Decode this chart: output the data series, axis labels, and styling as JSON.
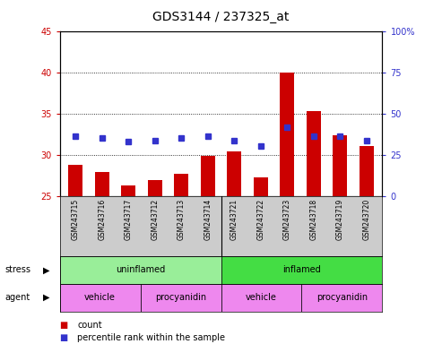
{
  "title": "GDS3144 / 237325_at",
  "samples": [
    "GSM243715",
    "GSM243716",
    "GSM243717",
    "GSM243712",
    "GSM243713",
    "GSM243714",
    "GSM243721",
    "GSM243722",
    "GSM243723",
    "GSM243718",
    "GSM243719",
    "GSM243720"
  ],
  "count_values": [
    28.8,
    27.9,
    26.3,
    26.9,
    27.7,
    29.9,
    30.4,
    27.3,
    40.0,
    35.3,
    32.4,
    31.1
  ],
  "percentile_values": [
    32.3,
    32.0,
    31.6,
    31.7,
    32.0,
    32.3,
    31.7,
    31.1,
    33.3,
    32.3,
    32.3,
    31.7
  ],
  "ylim_left": [
    25,
    45
  ],
  "ylim_right": [
    0,
    100
  ],
  "yticks_left": [
    25,
    30,
    35,
    40,
    45
  ],
  "yticks_right": [
    0,
    25,
    50,
    75,
    100
  ],
  "bar_color": "#cc0000",
  "dot_color": "#3333cc",
  "bar_width": 0.55,
  "stress_groups": [
    {
      "label": "uninflamed",
      "start": 0,
      "end": 6,
      "color": "#99ee99"
    },
    {
      "label": "inflamed",
      "start": 6,
      "end": 12,
      "color": "#44dd44"
    }
  ],
  "agent_groups": [
    {
      "label": "vehicle",
      "start": 0,
      "end": 3,
      "color": "#ee88ee"
    },
    {
      "label": "procyanidin",
      "start": 3,
      "end": 6,
      "color": "#ee88ee"
    },
    {
      "label": "vehicle",
      "start": 6,
      "end": 9,
      "color": "#ee88ee"
    },
    {
      "label": "procyanidin",
      "start": 9,
      "end": 12,
      "color": "#ee88ee"
    }
  ],
  "stress_label": "stress",
  "agent_label": "agent",
  "legend_count": "count",
  "legend_percentile": "percentile rank within the sample",
  "left_tick_color": "#cc0000",
  "right_tick_color": "#3333cc",
  "title_fontsize": 10,
  "tick_fontsize": 7,
  "sample_fontsize": 5.5,
  "row_label_fontsize": 7,
  "row_text_fontsize": 7,
  "legend_fontsize": 7
}
